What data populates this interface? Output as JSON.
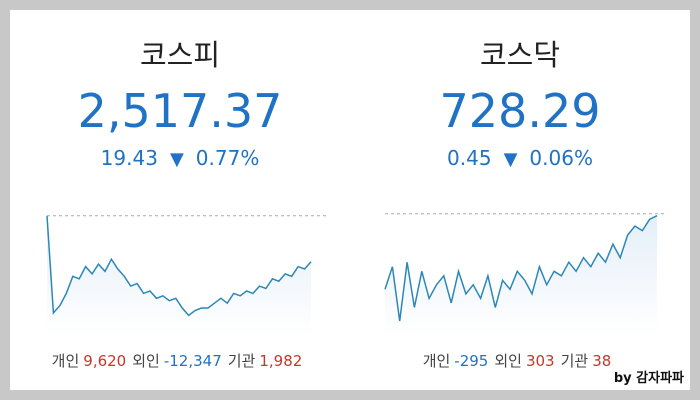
{
  "panels": [
    {
      "title": "코스피",
      "price": "2,517.37",
      "change": "19.43",
      "change_pct": "0.77%",
      "investors": [
        {
          "label": "개인",
          "value": "9,620"
        },
        {
          "label": "외인",
          "value": "-12,347"
        },
        {
          "label": "기관",
          "value": "1,982"
        }
      ],
      "line": {
        "reference": 2536.8,
        "ylim": [
          2490,
          2540
        ],
        "values": [
          2536.8,
          2497,
          2500,
          2505,
          2512,
          2511,
          2516,
          2513,
          2517,
          2514,
          2519,
          2515,
          2512,
          2508,
          2509,
          2505,
          2506,
          2503,
          2504,
          2502,
          2503,
          2499,
          2496,
          2498,
          2499,
          2499,
          2501,
          2503,
          2501,
          2505,
          2504,
          2506,
          2505,
          2508,
          2507,
          2511,
          2510,
          2513,
          2512,
          2516,
          2515,
          2518
        ]
      }
    },
    {
      "title": "코스닥",
      "price": "728.29",
      "change": "0.45",
      "change_pct": "0.06%",
      "investors": [
        {
          "label": "개인",
          "value": "-295"
        },
        {
          "label": "외인",
          "value": "303"
        },
        {
          "label": "기관",
          "value": "38"
        }
      ],
      "line": {
        "reference": 728.74,
        "ylim": [
          703,
          730
        ],
        "values": [
          712,
          717,
          705,
          718,
          708,
          716,
          710,
          713,
          715,
          709,
          716,
          711,
          713,
          710,
          715,
          708,
          714,
          712,
          716,
          714,
          711,
          717,
          713,
          716,
          715,
          718,
          716,
          719,
          717,
          720,
          718,
          722,
          719,
          724,
          726,
          725,
          727.5,
          728.29
        ]
      }
    }
  ],
  "watermark": "by 감자파파"
}
